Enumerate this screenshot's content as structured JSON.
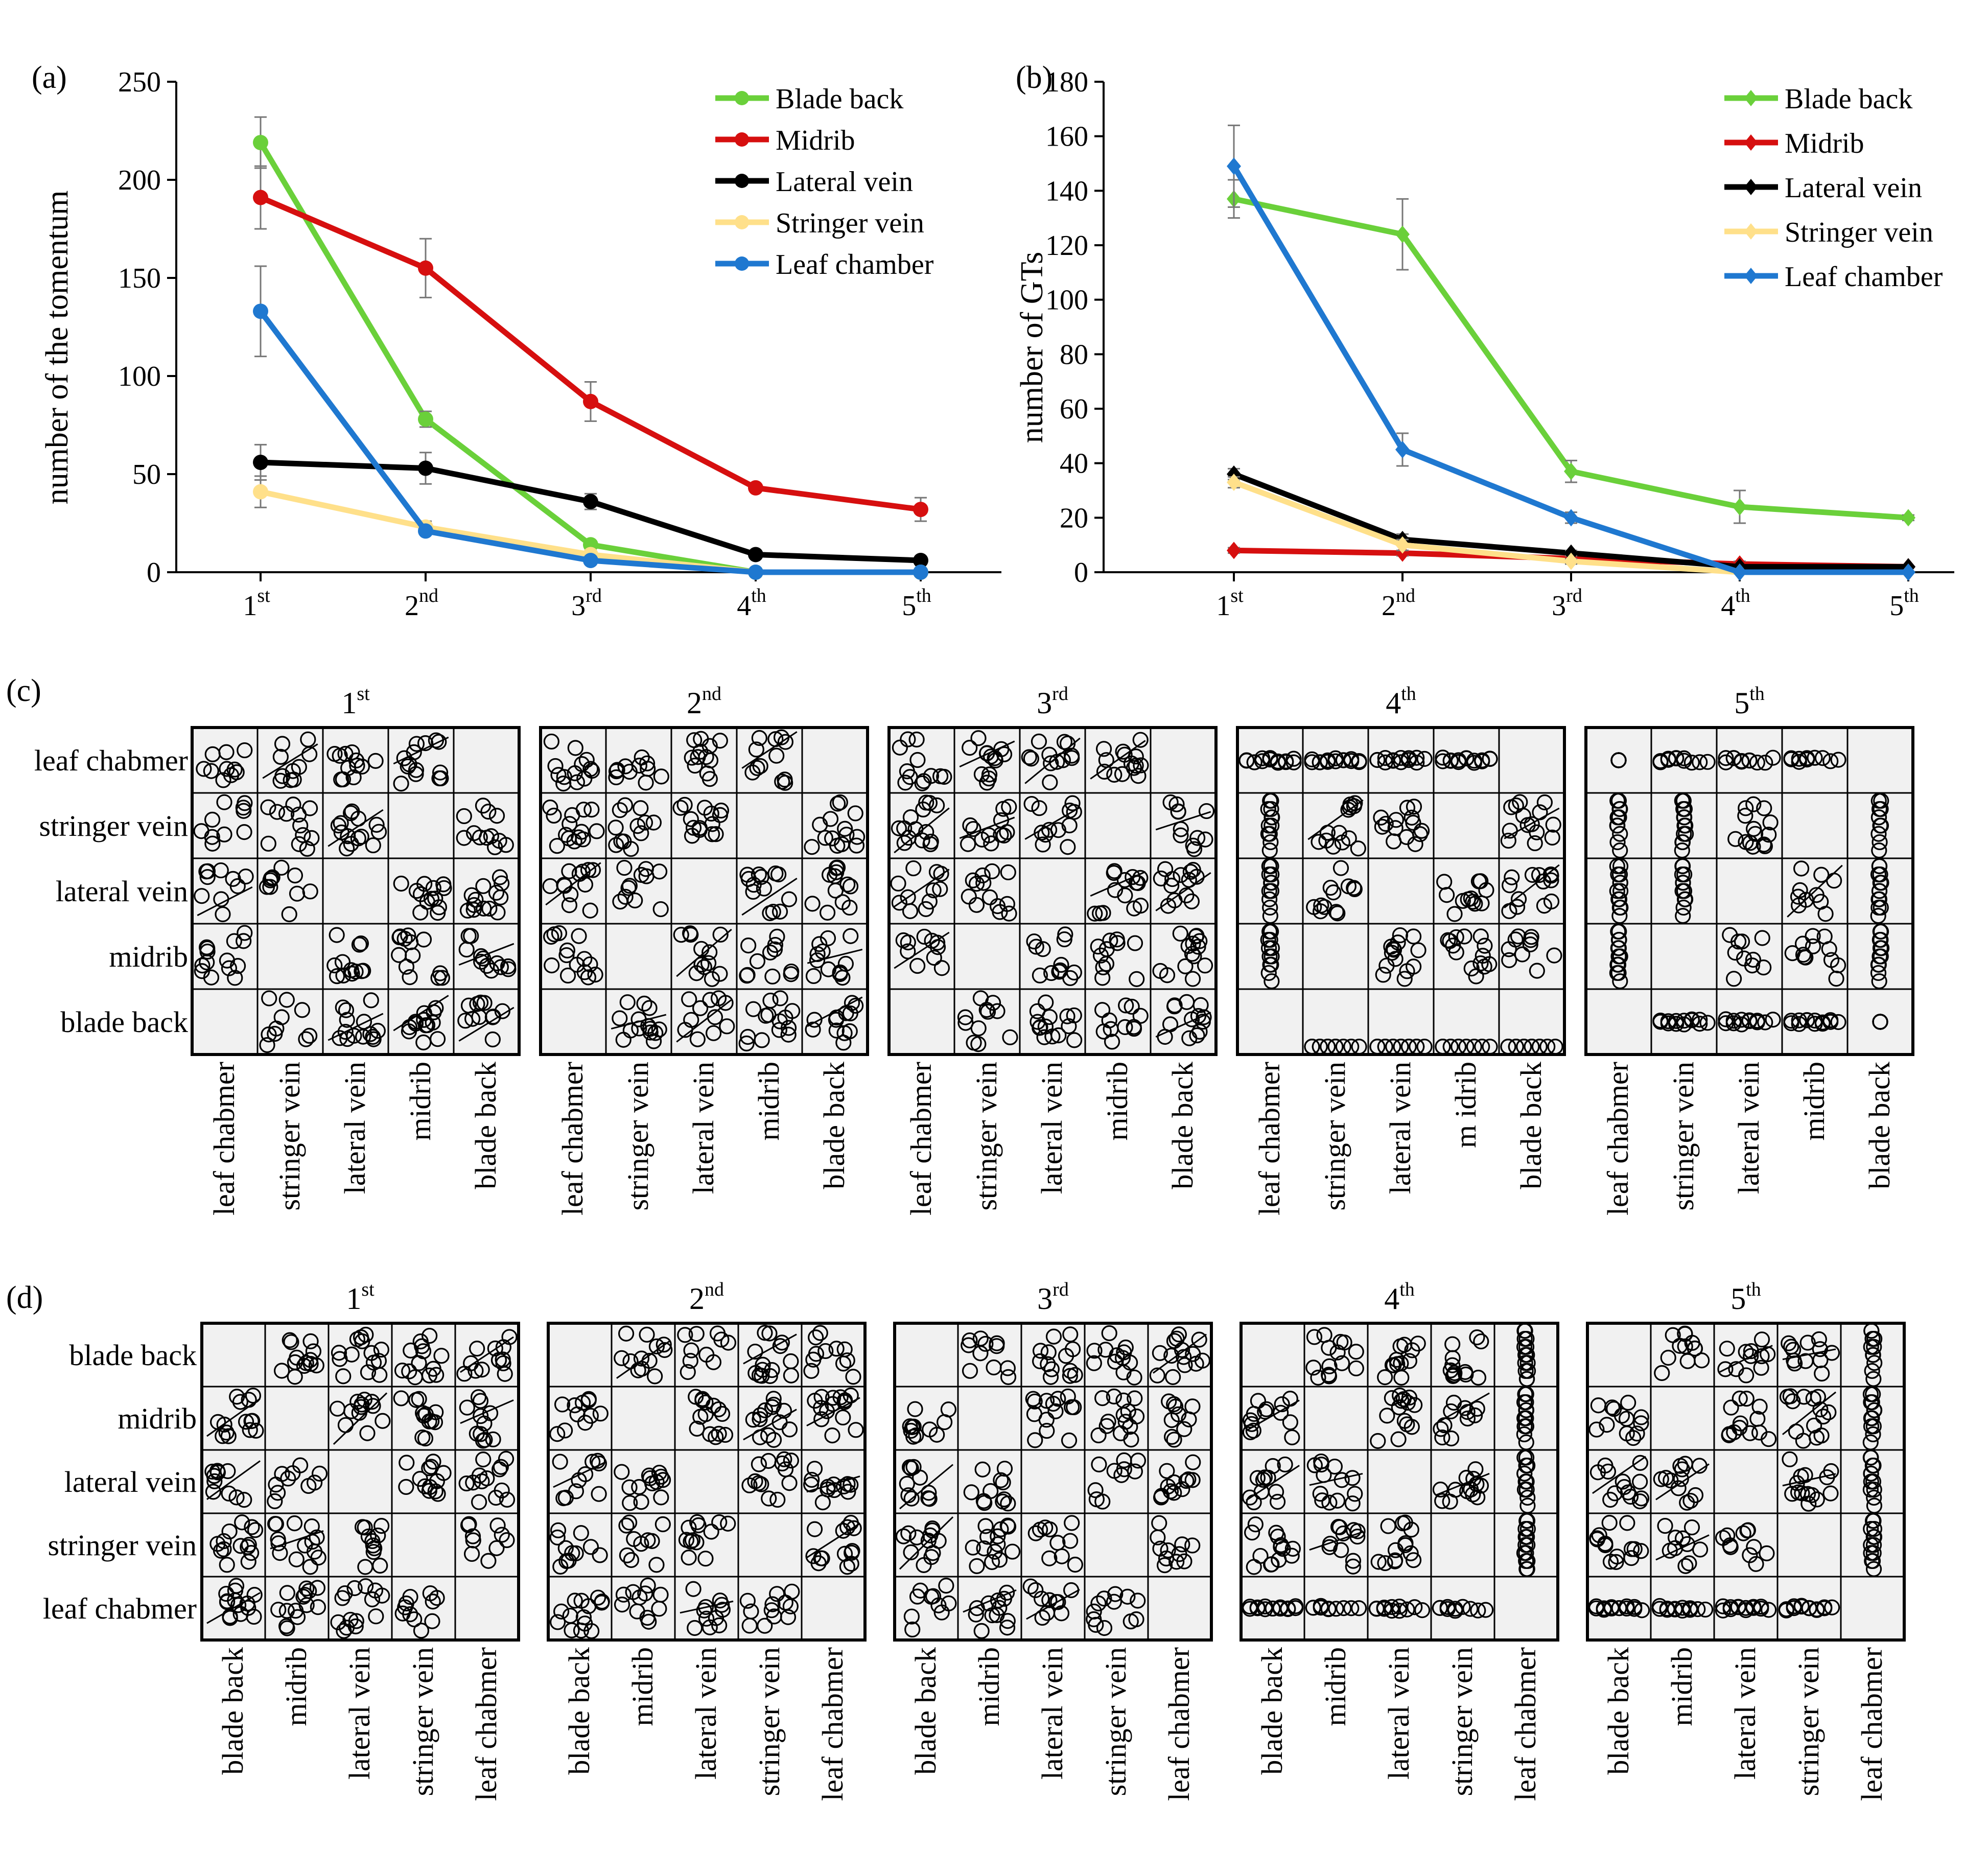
{
  "panel_letters": {
    "a": "(a)",
    "b": "(b)",
    "c": "(c)",
    "d": "(d)"
  },
  "chart_data": [
    {
      "id": "a",
      "type": "line",
      "title": "",
      "xlabel": "",
      "ylabel": "number of the tomentum",
      "categories": [
        {
          "base": "1",
          "sup": "st"
        },
        {
          "base": "2",
          "sup": "nd"
        },
        {
          "base": "3",
          "sup": "rd"
        },
        {
          "base": "4",
          "sup": "th"
        },
        {
          "base": "5",
          "sup": "th"
        }
      ],
      "ylim": [
        0,
        250
      ],
      "yticks": [
        0,
        50,
        100,
        150,
        200,
        250
      ],
      "marker": "circle",
      "legend_position": "top-right",
      "grid": false,
      "series": [
        {
          "name": "Blade back",
          "color": "#6ad03a",
          "values": [
            219,
            78,
            14,
            0,
            0
          ],
          "errors": [
            13,
            4,
            2,
            0,
            0
          ]
        },
        {
          "name": "Midrib",
          "color": "#d60f0f",
          "values": [
            191,
            155,
            87,
            43,
            32
          ],
          "errors": [
            16,
            15,
            10,
            2,
            6
          ]
        },
        {
          "name": "Lateral vein",
          "color": "#000000",
          "values": [
            56,
            53,
            36,
            9,
            6
          ],
          "errors": [
            9,
            8,
            4,
            2,
            1
          ]
        },
        {
          "name": "Stringer vein",
          "color": "#ffe08a",
          "values": [
            41,
            23,
            9,
            0,
            0
          ],
          "errors": [
            8,
            3,
            2,
            0,
            0
          ]
        },
        {
          "name": "Leaf chamber",
          "color": "#1f78d0",
          "values": [
            133,
            21,
            6,
            0,
            0
          ],
          "errors": [
            23,
            2,
            2,
            0,
            0
          ]
        }
      ]
    },
    {
      "id": "b",
      "type": "line",
      "title": "",
      "xlabel": "",
      "ylabel": "number of GTs",
      "categories": [
        {
          "base": "1",
          "sup": "st"
        },
        {
          "base": "2",
          "sup": "nd"
        },
        {
          "base": "3",
          "sup": "rd"
        },
        {
          "base": "4",
          "sup": "th"
        },
        {
          "base": "5",
          "sup": "th"
        }
      ],
      "ylim": [
        0,
        180
      ],
      "yticks": [
        0,
        20,
        40,
        60,
        80,
        100,
        120,
        140,
        160,
        180
      ],
      "marker": "diamond",
      "legend_position": "top-right",
      "grid": false,
      "series": [
        {
          "name": "Blade back",
          "color": "#6ad03a",
          "values": [
            137,
            124,
            37,
            24,
            20
          ],
          "errors": [
            7,
            13,
            4,
            6,
            1
          ]
        },
        {
          "name": "Midrib",
          "color": "#d60f0f",
          "values": [
            8,
            7,
            5,
            3,
            2
          ],
          "errors": [
            1,
            1,
            1,
            1,
            0
          ]
        },
        {
          "name": "Lateral vein",
          "color": "#000000",
          "values": [
            36,
            12,
            7,
            2,
            2
          ],
          "errors": [
            2,
            2,
            1,
            0,
            0
          ]
        },
        {
          "name": "Stringer vein",
          "color": "#ffe08a",
          "values": [
            33,
            10,
            4,
            0,
            0
          ],
          "errors": [
            2,
            2,
            1,
            0,
            0
          ]
        },
        {
          "name": "Leaf chamber",
          "color": "#1f78d0",
          "values": [
            149,
            45,
            20,
            0,
            0
          ],
          "errors": [
            15,
            6,
            2,
            0,
            0
          ]
        }
      ]
    }
  ],
  "matrix_c": {
    "row_labels": [
      "leaf chabmer",
      "stringer vein",
      "lateral vein",
      "midrib",
      "blade back"
    ],
    "col_labels": [
      [
        "leaf chabmer",
        "stringer vein",
        "lateral vein",
        "midrib",
        "blade back"
      ],
      [
        "leaf chabmer",
        "stringer vein",
        "lateral vein",
        "midrib",
        "blade back"
      ],
      [
        "leaf chabmer",
        "stringer vein",
        "lateral vein",
        "midrib",
        "blade back"
      ],
      [
        "leaf chabmer",
        "stringer vein",
        "lateral vein",
        "m idrib",
        "blade back"
      ],
      [
        "leaf chabmer",
        "stringer vein",
        "lateral vein",
        "midrib",
        "blade back"
      ]
    ],
    "groups": [
      {
        "base": "1",
        "sup": "st"
      },
      {
        "base": "2",
        "sup": "nd"
      },
      {
        "base": "3",
        "sup": "rd"
      },
      {
        "base": "4",
        "sup": "th"
      },
      {
        "base": "5",
        "sup": "th"
      }
    ]
  },
  "matrix_d": {
    "row_labels": [
      "blade back",
      "midrib",
      "lateral vein",
      "stringer vein",
      "leaf chabmer"
    ],
    "col_labels": [
      [
        "blade back",
        "midrib",
        "lateral vein",
        "stringer vein",
        "leaf chabmer"
      ],
      [
        "blade back",
        "midrib",
        "lateral vein",
        "stringer vein",
        "leaf chabmer"
      ],
      [
        "blade back",
        "midrib",
        "lateral vein",
        "stringer vein",
        "leaf chabmer"
      ],
      [
        "blade back",
        "midrib",
        "lateral vein",
        "stringer vein",
        "leaf chabmer"
      ],
      [
        "blade back",
        "midrib",
        "lateral vein",
        "stringer vein",
        "leaf chabmer"
      ]
    ],
    "groups": [
      {
        "base": "1",
        "sup": "st"
      },
      {
        "base": "2",
        "sup": "nd"
      },
      {
        "base": "3",
        "sup": "rd"
      },
      {
        "base": "4",
        "sup": "th"
      },
      {
        "base": "5",
        "sup": "th"
      }
    ]
  }
}
